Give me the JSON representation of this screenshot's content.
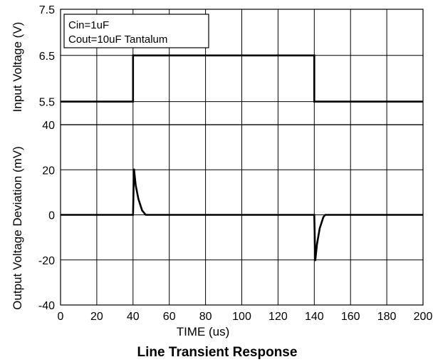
{
  "chart_data": [
    {
      "type": "line",
      "panel": "top",
      "xlim": [
        0,
        200
      ],
      "ylim": [
        5.0,
        7.5
      ],
      "y_ticks": [
        "5.5",
        "6.5",
        "7.5"
      ],
      "ylabel": "Input Voltage (V)",
      "grid": true,
      "legend": [
        "Cin=1uF",
        "Cout=10uF Tantalum"
      ],
      "legend_placement": "top-left",
      "series": [
        {
          "x": [
            0,
            40,
            40,
            140,
            140,
            200
          ],
          "y": [
            5.5,
            5.5,
            6.5,
            6.5,
            5.5,
            5.5
          ]
        }
      ]
    },
    {
      "type": "line",
      "panel": "bottom",
      "xlim": [
        0,
        200
      ],
      "ylim": [
        -40,
        40
      ],
      "y_ticks": [
        "40",
        "20",
        "0",
        "-20",
        "-40"
      ],
      "x_ticks": [
        "0",
        "20",
        "40",
        "60",
        "80",
        "100",
        "120",
        "140",
        "160",
        "180",
        "200"
      ],
      "xlabel": "TIME (us)",
      "ylabel": "Output Voltage Deviation (mV)",
      "grid": true,
      "series": [
        {
          "x": [
            0,
            40,
            40.5,
            41.5,
            43,
            45,
            47,
            140,
            140.5,
            141.5,
            143,
            145,
            146,
            200
          ],
          "y": [
            0,
            0,
            20.5,
            13,
            7,
            2,
            0,
            0,
            -20.5,
            -13,
            -6,
            -1,
            0,
            0
          ]
        }
      ]
    }
  ],
  "title": "Line Transient Response"
}
